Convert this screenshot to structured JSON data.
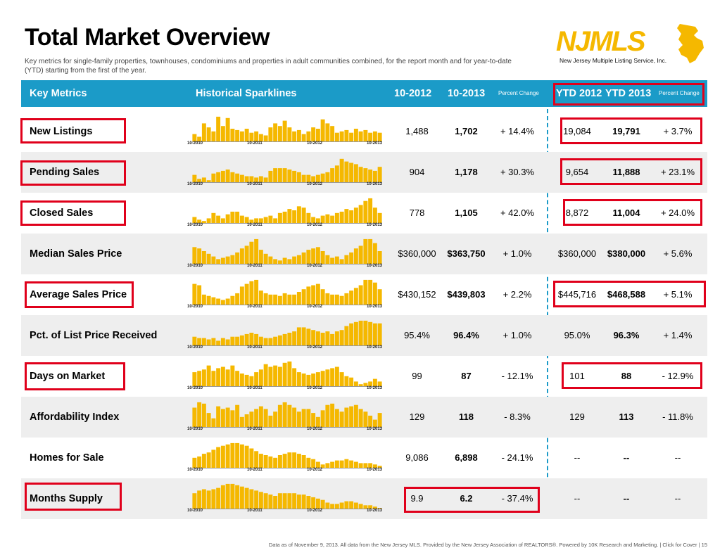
{
  "page": {
    "title": "Total Market Overview",
    "subtitle": "Key metrics for single-family properties, townhouses, condominiums and properties in adult communities combined, for the report month and for year-to-date (YTD) starting from the first of the year.",
    "logo_text": "NJMLS",
    "logo_tagline": "New Jersey Multiple Listing Service, Inc.",
    "footer": "Data as of November 9, 2013. All data from the New Jersey MLS. Provided by the New Jersey Association of REALTORS®. Powered by 10K Research and Marketing. | Click for Cover | 15"
  },
  "header": {
    "key_metrics": "Key Metrics",
    "sparklines": "Historical Sparklines",
    "col_2012": "10-2012",
    "col_2013": "10-2013",
    "pct_change": "Percent Change",
    "ytd_2012": "YTD 2012",
    "ytd_2013": "YTD 2013",
    "ytd_pct_change": "Percent Change"
  },
  "spark_ticks": [
    "10-2010",
    "10-2011",
    "10-2012",
    "10-2013"
  ],
  "colors": {
    "header": "#1b9bc8",
    "bar": "#f5b800",
    "highlight": "#e0001b",
    "row_shade": "#eeeeee"
  },
  "rows": [
    {
      "label": "New Listings",
      "v2012": "1,488",
      "v2013": "1,702",
      "pct": "+ 14.4%",
      "ytd2012": "19,084",
      "ytd2013": "19,791",
      "ytdpct": "+ 3.7%",
      "spark": [
        30,
        20,
        70,
        55,
        40,
        95,
        60,
        90,
        50,
        45,
        40,
        50,
        35,
        40,
        30,
        25,
        55,
        70,
        60,
        80,
        55,
        40,
        45,
        30,
        40,
        55,
        50,
        85,
        70,
        60,
        35,
        40,
        45,
        35,
        50,
        40,
        45,
        35,
        40,
        35
      ]
    },
    {
      "label": "Pending Sales",
      "v2012": "904",
      "v2013": "1,178",
      "pct": "+ 30.3%",
      "ytd2012": "9,654",
      "ytd2013": "11,888",
      "ytdpct": "+ 23.1%",
      "spark": [
        30,
        15,
        20,
        10,
        35,
        40,
        45,
        50,
        40,
        35,
        30,
        25,
        25,
        20,
        25,
        20,
        45,
        55,
        55,
        55,
        50,
        45,
        40,
        30,
        30,
        25,
        30,
        35,
        40,
        55,
        65,
        90,
        80,
        75,
        70,
        60,
        55,
        50,
        45,
        60
      ]
    },
    {
      "label": "Closed Sales",
      "v2012": "778",
      "v2013": "1,105",
      "pct": "+ 42.0%",
      "ytd2012": "8,872",
      "ytd2013": "11,004",
      "ytdpct": "+ 24.0%",
      "spark": [
        25,
        15,
        10,
        20,
        40,
        30,
        20,
        35,
        45,
        45,
        30,
        25,
        15,
        20,
        20,
        25,
        30,
        20,
        40,
        45,
        55,
        50,
        65,
        60,
        40,
        25,
        20,
        30,
        35,
        30,
        40,
        45,
        55,
        50,
        60,
        70,
        85,
        95,
        60,
        40
      ]
    },
    {
      "label": "Median Sales Price",
      "v2012": "$360,000",
      "v2013": "$363,750",
      "pct": "+ 1.0%",
      "ytd2012": "$360,000",
      "ytd2013": "$380,000",
      "ytdpct": "+ 5.6%",
      "spark": [
        65,
        60,
        50,
        40,
        30,
        20,
        25,
        30,
        35,
        45,
        60,
        70,
        85,
        95,
        55,
        40,
        30,
        20,
        15,
        25,
        20,
        30,
        35,
        45,
        55,
        60,
        65,
        50,
        35,
        25,
        30,
        20,
        35,
        45,
        60,
        70,
        95,
        95,
        80,
        50
      ]
    },
    {
      "label": "Average Sales Price",
      "v2012": "$430,152",
      "v2013": "$439,803",
      "pct": "+ 2.2%",
      "ytd2012": "$445,716",
      "ytd2013": "$468,588",
      "ytdpct": "+ 5.1%",
      "spark": [
        80,
        75,
        40,
        35,
        30,
        25,
        20,
        25,
        35,
        45,
        70,
        80,
        90,
        95,
        55,
        45,
        40,
        40,
        35,
        45,
        40,
        40,
        50,
        60,
        70,
        75,
        80,
        60,
        45,
        40,
        40,
        35,
        45,
        55,
        65,
        75,
        95,
        95,
        85,
        60
      ]
    },
    {
      "label": "Pct. of List Price Received",
      "v2012": "95.4%",
      "v2013": "96.4%",
      "pct": "+ 1.0%",
      "ytd2012": "95.0%",
      "ytd2013": "96.3%",
      "ytdpct": "+ 1.4%",
      "spark": [
        35,
        30,
        30,
        25,
        30,
        20,
        30,
        25,
        35,
        35,
        40,
        45,
        50,
        45,
        35,
        30,
        30,
        35,
        40,
        45,
        50,
        55,
        70,
        70,
        65,
        60,
        55,
        50,
        55,
        45,
        55,
        60,
        75,
        85,
        90,
        95,
        95,
        90,
        85,
        85
      ]
    },
    {
      "label": "Days on Market",
      "v2012": "99",
      "v2013": "87",
      "pct": "- 12.1%",
      "ytd2012": "101",
      "ytd2013": "88",
      "ytdpct": "- 12.9%",
      "spark": [
        55,
        60,
        65,
        80,
        60,
        70,
        75,
        65,
        80,
        60,
        50,
        45,
        40,
        55,
        65,
        85,
        75,
        80,
        75,
        90,
        95,
        70,
        55,
        50,
        45,
        50,
        55,
        60,
        65,
        70,
        75,
        55,
        40,
        35,
        20,
        10,
        15,
        20,
        30,
        20
      ]
    },
    {
      "label": "Affordability Index",
      "v2012": "129",
      "v2013": "118",
      "pct": "- 8.3%",
      "ytd2012": "129",
      "ytd2013": "113",
      "ytdpct": "- 11.8%",
      "spark": [
        75,
        95,
        90,
        55,
        35,
        80,
        70,
        75,
        65,
        85,
        40,
        50,
        60,
        70,
        80,
        70,
        45,
        60,
        85,
        95,
        85,
        75,
        60,
        70,
        70,
        55,
        40,
        65,
        85,
        90,
        70,
        60,
        75,
        80,
        85,
        70,
        60,
        45,
        30,
        55
      ]
    },
    {
      "label": "Homes for Sale",
      "v2012": "9,086",
      "v2013": "6,898",
      "pct": "- 24.1%",
      "ytd2012": "--",
      "ytd2013": "--",
      "ytdpct": "--",
      "spark": [
        40,
        45,
        55,
        60,
        70,
        80,
        85,
        90,
        95,
        95,
        90,
        85,
        75,
        65,
        55,
        50,
        45,
        40,
        50,
        55,
        60,
        60,
        55,
        50,
        40,
        35,
        25,
        15,
        20,
        25,
        30,
        30,
        35,
        30,
        25,
        20,
        20,
        20,
        15,
        10
      ]
    },
    {
      "label": "Months Supply",
      "v2012": "9.9",
      "v2013": "6.2",
      "pct": "- 37.4%",
      "ytd2012": "--",
      "ytd2013": "--",
      "ytdpct": "--",
      "spark": [
        60,
        70,
        75,
        70,
        75,
        80,
        90,
        95,
        95,
        90,
        85,
        80,
        75,
        70,
        65,
        60,
        55,
        50,
        60,
        60,
        60,
        60,
        55,
        55,
        50,
        45,
        40,
        35,
        25,
        20,
        20,
        25,
        30,
        30,
        25,
        20,
        15,
        15,
        10,
        5
      ]
    }
  ]
}
